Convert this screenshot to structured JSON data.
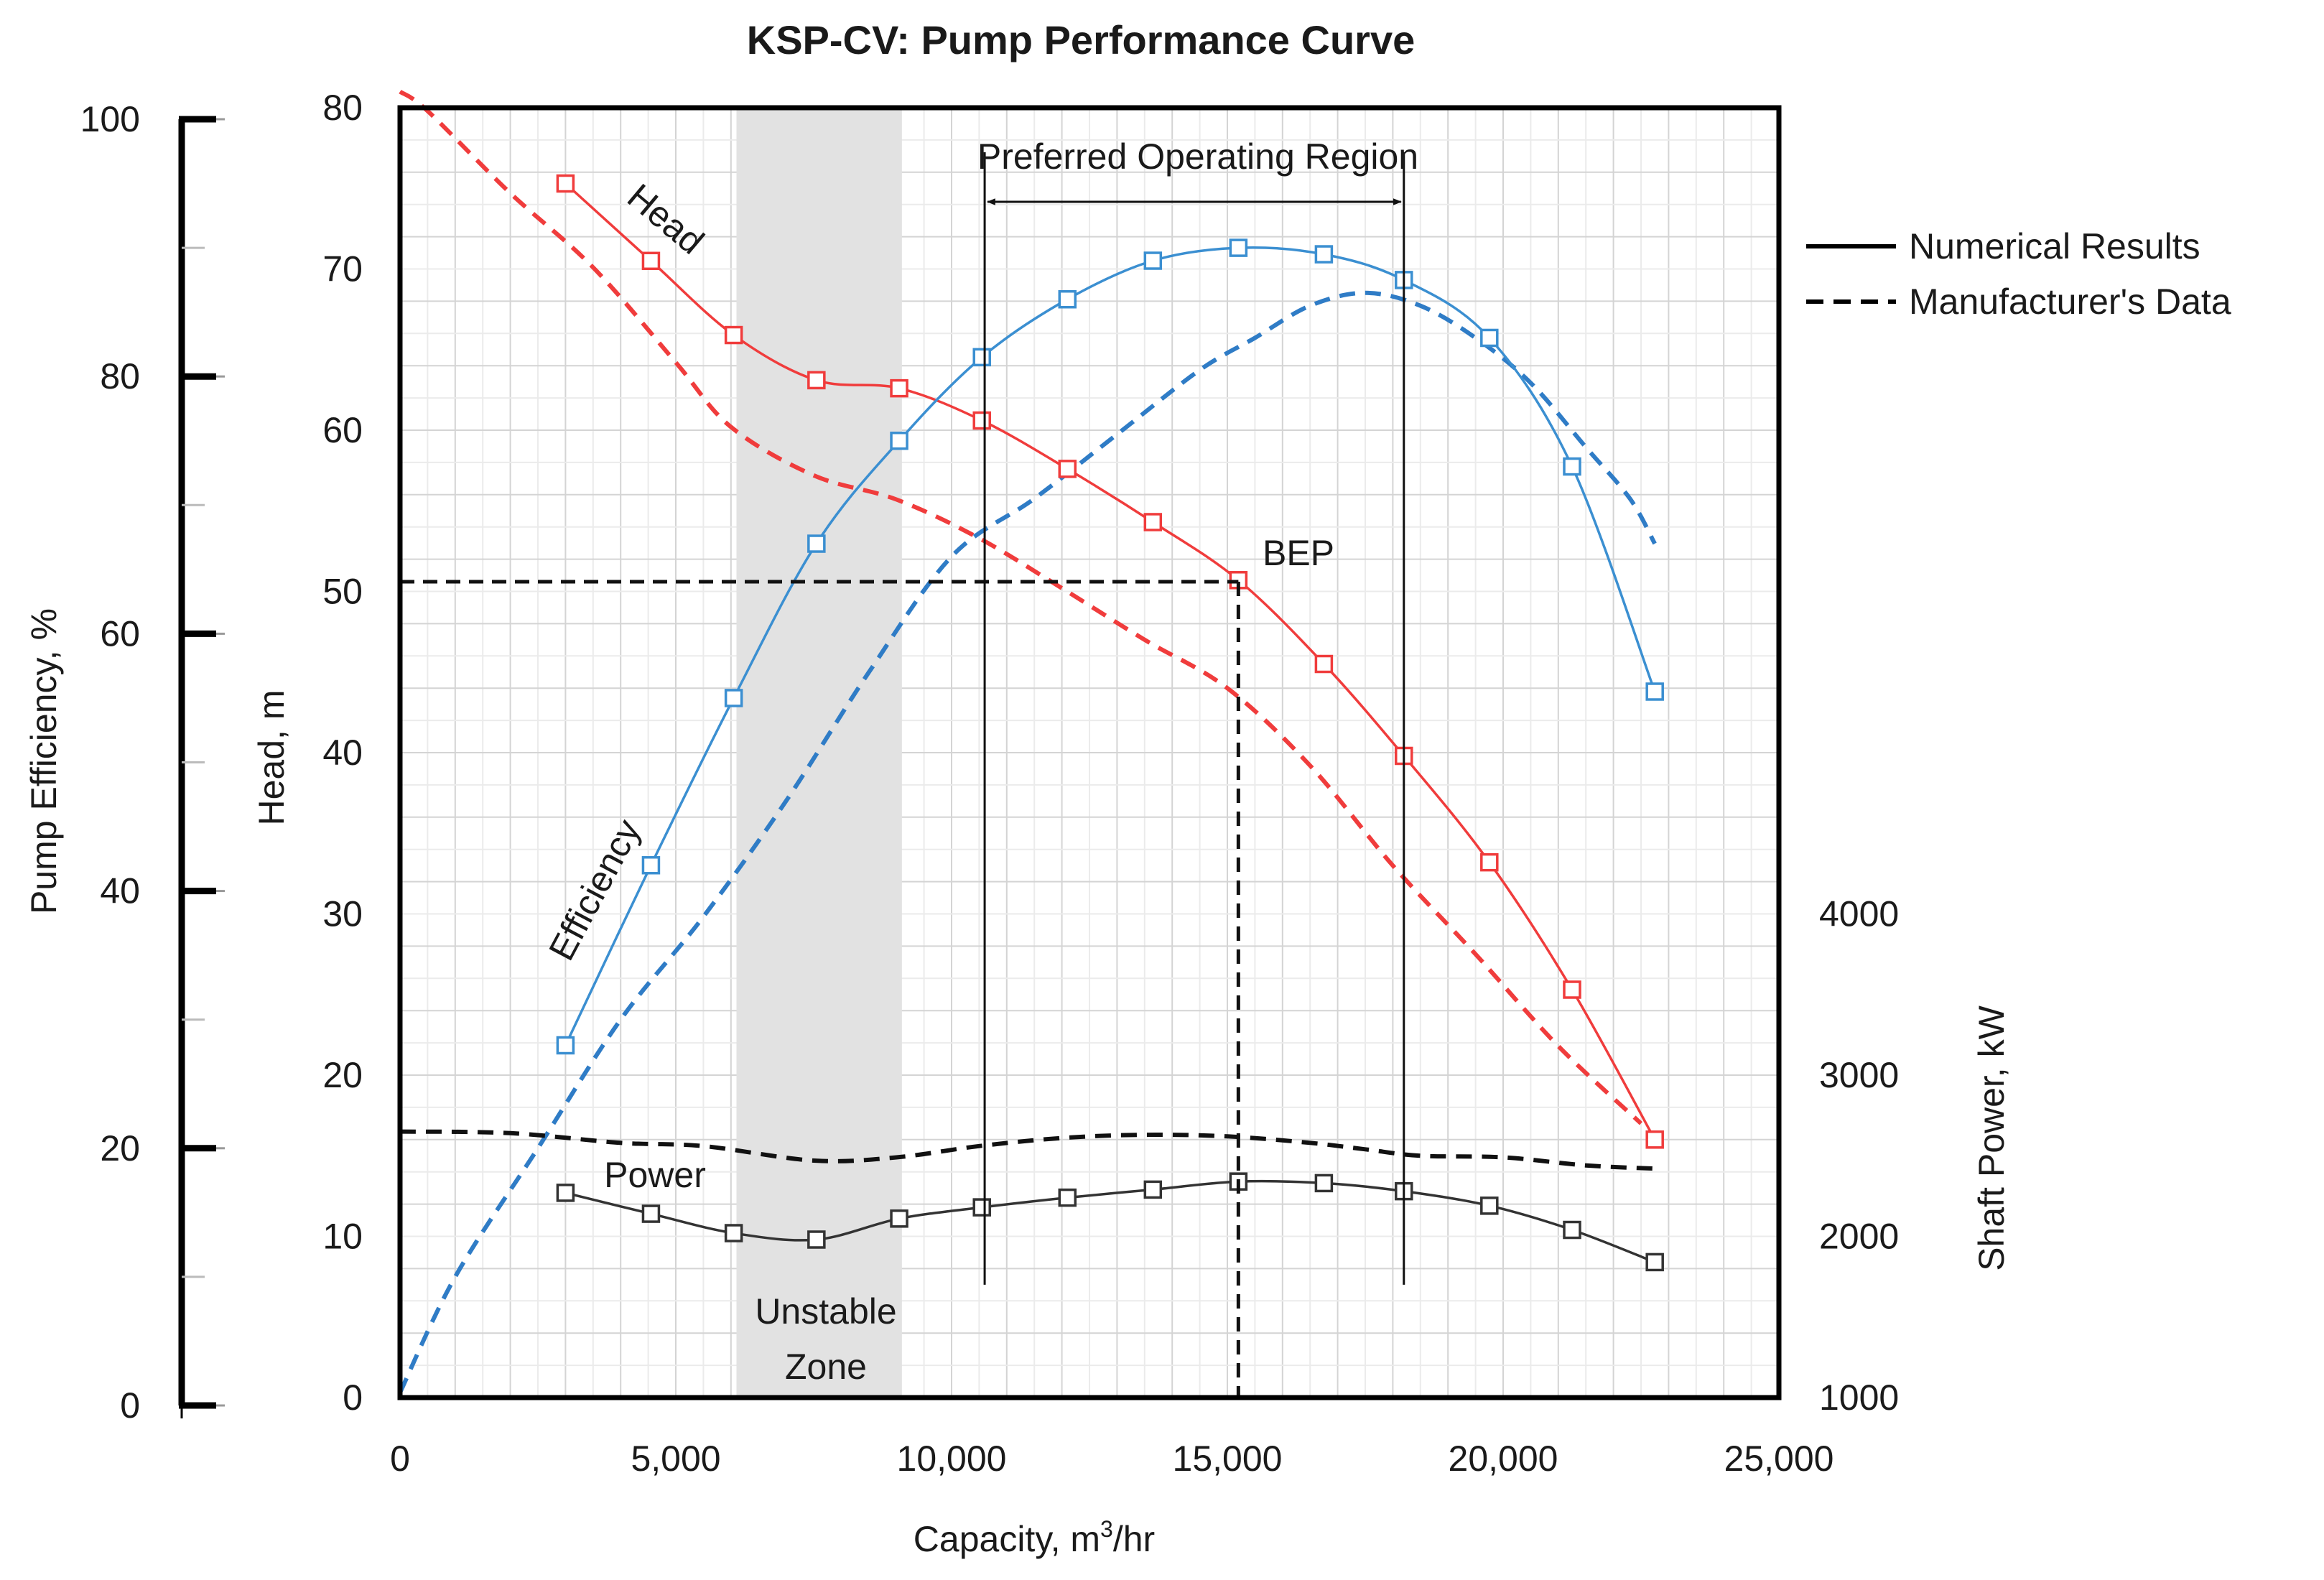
{
  "chart_data": {
    "type": "line",
    "title": "KSP-CV: Pump Performance Curve",
    "xlabel": "Capacity, m³/hr",
    "xlabel_parts": [
      "Capacity, m",
      "3",
      "/hr"
    ],
    "xlim": [
      0,
      25000
    ],
    "x_ticks": [
      "0",
      "5,000",
      "10,000",
      "15,000",
      "20,000",
      "25,000"
    ],
    "axes": {
      "head": {
        "label": "Head, m",
        "range": [
          0,
          80
        ],
        "ticks": [
          "0",
          "10",
          "20",
          "30",
          "40",
          "50",
          "60",
          "70",
          "80"
        ]
      },
      "efficiency": {
        "label": "Pump Efficiency, %",
        "range": [
          0,
          100
        ],
        "ticks": [
          "0",
          "20",
          "40",
          "60",
          "80",
          "100"
        ]
      },
      "power": {
        "label": "Shaft Power, kW",
        "range": [
          1000,
          9000
        ],
        "ticks": [
          "1000",
          "2000",
          "3000",
          "4000"
        ]
      }
    },
    "legend": {
      "position": "right",
      "entries": [
        {
          "style": "solid",
          "label": "Numerical Results"
        },
        {
          "style": "dashed",
          "label": "Manufacturer's Data"
        }
      ]
    },
    "annotations": {
      "head_label": "Head",
      "efficiency_label": "Efficiency",
      "power_label": "Power",
      "bep_label": "BEP",
      "preferred_region_label": "Preferred Operating Region",
      "unstable_zone_line1": "Unstable",
      "unstable_zone_line2": "Zone",
      "unstable_zone_range": [
        6100,
        9100
      ],
      "preferred_region_range": [
        10600,
        18200
      ],
      "bep": {
        "x": 15200,
        "head": 50.6
      }
    },
    "series": [
      {
        "name": "Head (Numerical)",
        "axis": "head",
        "style": "solid",
        "color": "#f03c3c",
        "markers": true,
        "x": [
          3000,
          4550,
          6050,
          7550,
          9050,
          10550,
          12100,
          13650,
          15200,
          16750,
          18200,
          19750,
          21250,
          22750
        ],
        "values": [
          75.3,
          70.5,
          65.9,
          63.1,
          62.6,
          60.6,
          57.6,
          54.3,
          50.7,
          45.5,
          39.8,
          33.2,
          25.3,
          16.0
        ]
      },
      {
        "name": "Efficiency (Numerical)",
        "axis": "efficiency",
        "style": "solid",
        "color": "#3b8fd1",
        "markers": true,
        "x": [
          3000,
          4550,
          6050,
          7550,
          9050,
          10550,
          12100,
          13650,
          15200,
          16750,
          18200,
          19750,
          21250,
          22750
        ],
        "values": [
          28.0,
          42.0,
          55.0,
          67.0,
          75.0,
          81.5,
          86.0,
          89.0,
          90.0,
          89.5,
          87.5,
          83.0,
          73.0,
          55.5
        ]
      },
      {
        "name": "Power (Numerical)",
        "axis": "power",
        "style": "solid",
        "color": "#333333",
        "markers": true,
        "x": [
          3000,
          4550,
          6050,
          7550,
          9050,
          10550,
          12100,
          13650,
          15200,
          16750,
          18200,
          19750,
          21250,
          22750
        ],
        "values": [
          2270,
          2140,
          2020,
          1980,
          2110,
          2180,
          2240,
          2290,
          2340,
          2330,
          2280,
          2190,
          2040,
          1840
        ]
      },
      {
        "name": "Head (Manufacturer)",
        "axis": "head",
        "style": "dashed",
        "color": "#f03c3c",
        "markers": false,
        "x": [
          0,
          500,
          2000,
          3500,
          5000,
          6000,
          7500,
          9000,
          10500,
          12000,
          13500,
          15000,
          16500,
          18000,
          19500,
          21000,
          22500
        ],
        "values": [
          81.0,
          79.8,
          74.7,
          70.1,
          64.2,
          60.2,
          57.2,
          55.7,
          53.3,
          50.2,
          47.0,
          44.0,
          39.2,
          33.0,
          27.5,
          21.8,
          17.0
        ]
      },
      {
        "name": "Efficiency (Manufacturer)",
        "axis": "efficiency",
        "style": "dashed",
        "color": "#2f7cc6",
        "markers": false,
        "x": [
          0,
          1000,
          2500,
          4000,
          5500,
          7000,
          8500,
          10000,
          11500,
          13000,
          14500,
          15500,
          16500,
          17500,
          18500,
          19500,
          20500,
          21500,
          22300,
          22750
        ],
        "values": [
          1.0,
          10.0,
          20.0,
          30.0,
          38.0,
          47.0,
          57.0,
          66.0,
          70.5,
          75.5,
          80.5,
          83.0,
          85.5,
          86.5,
          85.5,
          83.0,
          79.5,
          74.5,
          70.5,
          67.0
        ]
      },
      {
        "name": "Power (Manufacturer)",
        "axis": "power",
        "style": "dashed",
        "color": "#111111",
        "markers": false,
        "x": [
          0,
          2000,
          4000,
          5500,
          7500,
          9000,
          10500,
          12000,
          13500,
          15000,
          16500,
          17500,
          18500,
          20000,
          21500,
          22750
        ],
        "values": [
          2650,
          2640,
          2580,
          2560,
          2470,
          2490,
          2560,
          2610,
          2630,
          2620,
          2580,
          2540,
          2500,
          2490,
          2440,
          2420
        ]
      }
    ]
  }
}
